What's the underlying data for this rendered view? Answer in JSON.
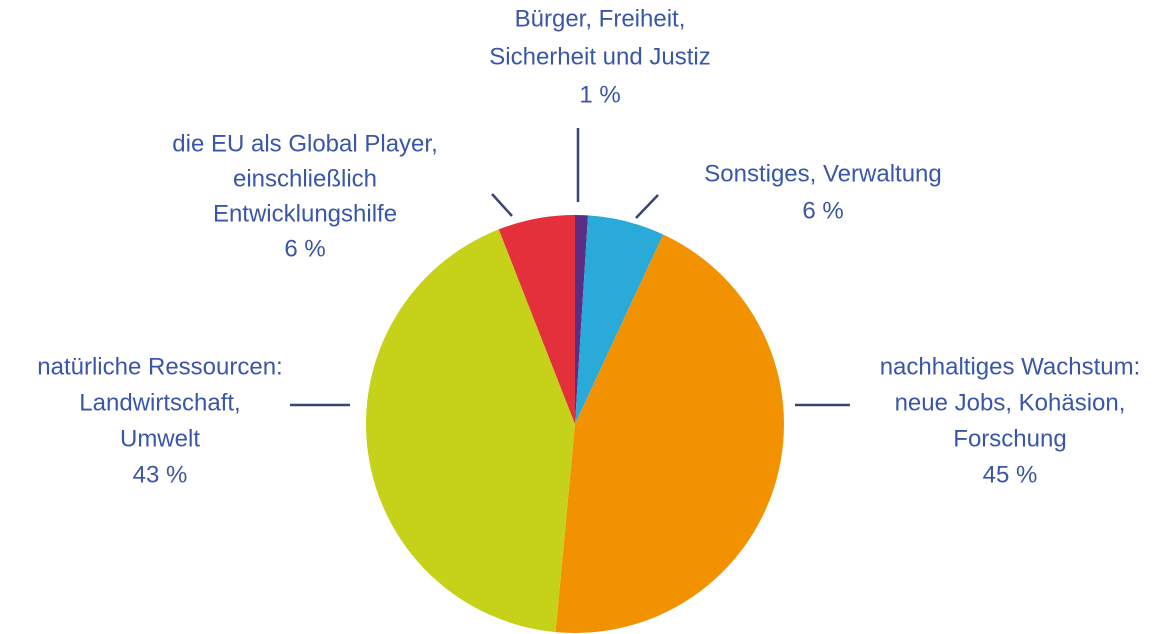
{
  "chart_data": {
    "type": "pie",
    "categories": [
      [
        "Bürger, Freiheit,",
        "Sicherheit und Justiz"
      ],
      [
        "Sonstiges, Verwaltung"
      ],
      [
        "nachhaltiges Wachstum:",
        "neue Jobs, Kohäsion,",
        "Forschung"
      ],
      [
        "natürliche Ressourcen:",
        "Landwirtschaft,",
        "Umwelt"
      ],
      [
        "die EU als Global Player,",
        "einschließlich",
        "Entwicklungshilfe"
      ]
    ],
    "values": [
      1,
      6,
      45,
      43,
      6
    ],
    "value_labels": [
      "1 %",
      "6 %",
      "45 %",
      "43 %",
      "6 %"
    ],
    "colors": [
      "#5b2d84",
      "#2aaad9",
      "#f39200",
      "#c6d219",
      "#e3303b"
    ]
  }
}
